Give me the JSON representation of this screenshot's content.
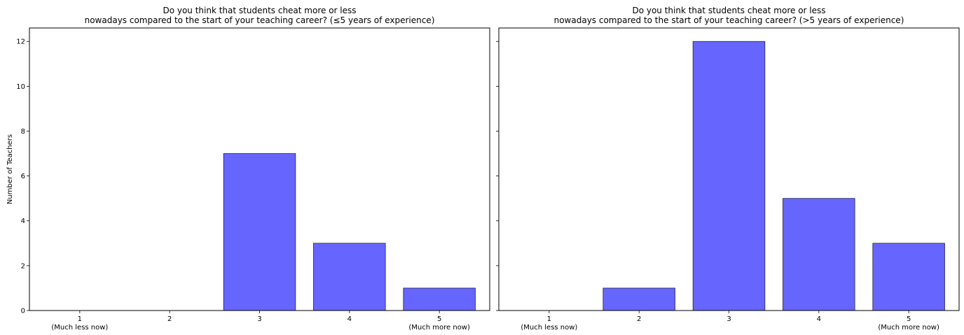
{
  "chart_data": [
    {
      "type": "bar",
      "title_lines": [
        "Do you think that students cheat more or less",
        "nowadays compared to the start of your teaching career? (≤5 years of experience)"
      ],
      "ylabel": "Number of Teachers",
      "categories": [
        "1",
        "2",
        "3",
        "4",
        "5"
      ],
      "category_sublabels": [
        "(Much less now)",
        "",
        "",
        "",
        "(Much more now)"
      ],
      "values": [
        0,
        0,
        7,
        3,
        1
      ],
      "ylim": [
        0,
        12.6
      ],
      "yticks": [
        0,
        2,
        4,
        6,
        8,
        10,
        12
      ],
      "show_ytick_labels": true,
      "bar_color": "#6666ff",
      "grid": false
    },
    {
      "type": "bar",
      "title_lines": [
        "Do you think that students cheat more or less",
        "nowadays compared to the start of your teaching career? (>5 years of experience)"
      ],
      "ylabel": "",
      "categories": [
        "1",
        "2",
        "3",
        "4",
        "5"
      ],
      "category_sublabels": [
        "(Much less now)",
        "",
        "",
        "",
        "(Much more now)"
      ],
      "values": [
        0,
        1,
        12,
        5,
        3
      ],
      "ylim": [
        0,
        12.6
      ],
      "yticks": [
        0,
        2,
        4,
        6,
        8,
        10,
        12
      ],
      "show_ytick_labels": false,
      "bar_color": "#6666ff",
      "grid": false
    }
  ]
}
